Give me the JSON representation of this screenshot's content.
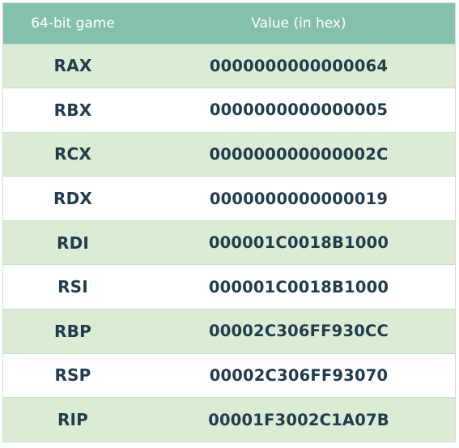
{
  "table": {
    "headers": [
      "64-bit game",
      "Value (in hex)"
    ],
    "rows": [
      {
        "register": "RAX",
        "value": "0000000000000064"
      },
      {
        "register": "RBX",
        "value": "0000000000000005"
      },
      {
        "register": "RCX",
        "value": "000000000000002C"
      },
      {
        "register": "RDX",
        "value": "0000000000000019"
      },
      {
        "register": "RDI",
        "value": "000001C0018B1000"
      },
      {
        "register": "RSI",
        "value": "000001C0018B1000"
      },
      {
        "register": "RBP",
        "value": "00002C306FF930CC"
      },
      {
        "register": "RSP",
        "value": "00002C306FF93070"
      },
      {
        "register": "RIP",
        "value": "00001F3002C1A07B"
      }
    ]
  },
  "colors": {
    "header_bg": "#85c0ad",
    "row_alt_bg": "#dcebd3",
    "row_bg": "#ffffff",
    "text": "#1f3d4e",
    "border": "#c9ded5"
  }
}
